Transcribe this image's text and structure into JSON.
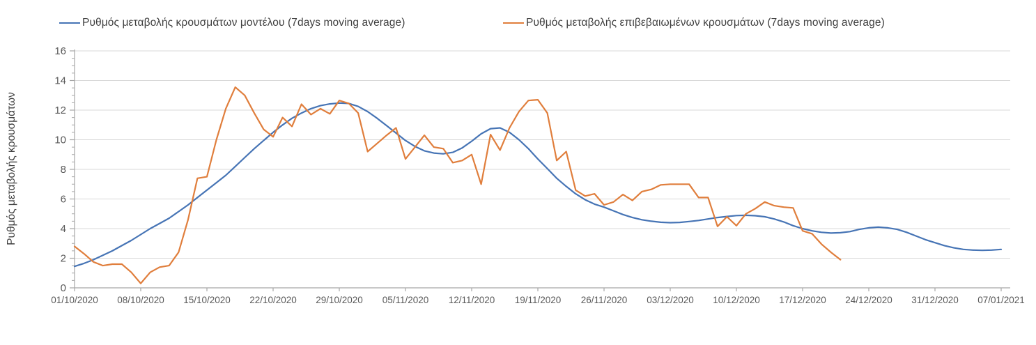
{
  "legend": {
    "position": "top"
  },
  "colors": {
    "model": "#4674b5",
    "confirmed": "#e07e3c",
    "grid": "#d9d9d9",
    "axis": "#a6a6a6",
    "tick_label": "#595959",
    "text": "#3f3f3f"
  },
  "chart_data": {
    "type": "line",
    "title": "",
    "xlabel": "",
    "ylabel": "Ρυθμός μεταβολής κρουσμάτων",
    "ylim": [
      0,
      16
    ],
    "y_major_step": 2,
    "y_minor_step": 0.5,
    "grid": "horizontal-only",
    "legend_position": "top",
    "x_axis": {
      "start_date": "01/10/2020",
      "end_date": "07/01/2021",
      "tick_interval_days": 7,
      "tick_labels": [
        "01/10/2020",
        "08/10/2020",
        "15/10/2020",
        "22/10/2020",
        "29/10/2020",
        "05/11/2020",
        "12/11/2020",
        "19/11/2020",
        "26/11/2020",
        "03/12/2020",
        "10/12/2020",
        "17/12/2020",
        "24/12/2020",
        "31/12/2020",
        "07/01/2021"
      ]
    },
    "y_tick_labels": [
      "0",
      "2",
      "4",
      "6",
      "8",
      "10",
      "12",
      "14",
      "16"
    ],
    "series": [
      {
        "name": "Ρυθμός μεταβολής κρουσμάτων μοντέλου (7days moving average)",
        "color_key": "model",
        "start_day": 0,
        "values": [
          1.45,
          1.65,
          1.9,
          2.2,
          2.5,
          2.85,
          3.2,
          3.6,
          4.0,
          4.35,
          4.7,
          5.15,
          5.6,
          6.1,
          6.6,
          7.1,
          7.6,
          8.2,
          8.8,
          9.4,
          9.95,
          10.5,
          11.0,
          11.45,
          11.8,
          12.1,
          12.3,
          12.42,
          12.48,
          12.45,
          12.25,
          11.9,
          11.45,
          10.95,
          10.45,
          9.95,
          9.55,
          9.25,
          9.1,
          9.05,
          9.15,
          9.45,
          9.9,
          10.4,
          10.75,
          10.8,
          10.5,
          10.0,
          9.4,
          8.7,
          8.05,
          7.4,
          6.85,
          6.35,
          5.95,
          5.65,
          5.45,
          5.2,
          4.95,
          4.75,
          4.6,
          4.5,
          4.43,
          4.4,
          4.42,
          4.48,
          4.55,
          4.65,
          4.75,
          4.82,
          4.88,
          4.9,
          4.87,
          4.8,
          4.65,
          4.45,
          4.2,
          4.0,
          3.85,
          3.75,
          3.7,
          3.72,
          3.8,
          3.95,
          4.05,
          4.1,
          4.05,
          3.95,
          3.75,
          3.5,
          3.25,
          3.05,
          2.85,
          2.7,
          2.6,
          2.55,
          2.53,
          2.55,
          2.6
        ]
      },
      {
        "name": "Ρυθμός μεταβολής επιβεβαιωμένων κρουσμάτων (7days moving average)",
        "color_key": "confirmed",
        "start_day": 0,
        "values": [
          2.8,
          2.3,
          1.75,
          1.5,
          1.6,
          1.6,
          1.05,
          0.3,
          1.05,
          1.4,
          1.5,
          2.4,
          4.6,
          7.4,
          7.5,
          10.0,
          12.1,
          13.55,
          13.0,
          11.8,
          10.7,
          10.2,
          11.5,
          10.9,
          12.4,
          11.7,
          12.1,
          11.75,
          12.65,
          12.45,
          11.8,
          9.2,
          9.75,
          10.3,
          10.8,
          8.7,
          9.5,
          10.3,
          9.5,
          9.4,
          8.45,
          8.6,
          9.0,
          7.0,
          10.35,
          9.3,
          10.8,
          11.9,
          12.65,
          12.7,
          11.8,
          8.6,
          9.2,
          6.6,
          6.2,
          6.35,
          5.6,
          5.8,
          6.3,
          5.9,
          6.5,
          6.65,
          6.95,
          7.0,
          7.0,
          7.0,
          6.1,
          6.1,
          4.15,
          4.8,
          4.2,
          5.0,
          5.35,
          5.8,
          5.55,
          5.45,
          5.4,
          3.85,
          3.65,
          2.95,
          2.4,
          1.9
        ]
      }
    ]
  }
}
